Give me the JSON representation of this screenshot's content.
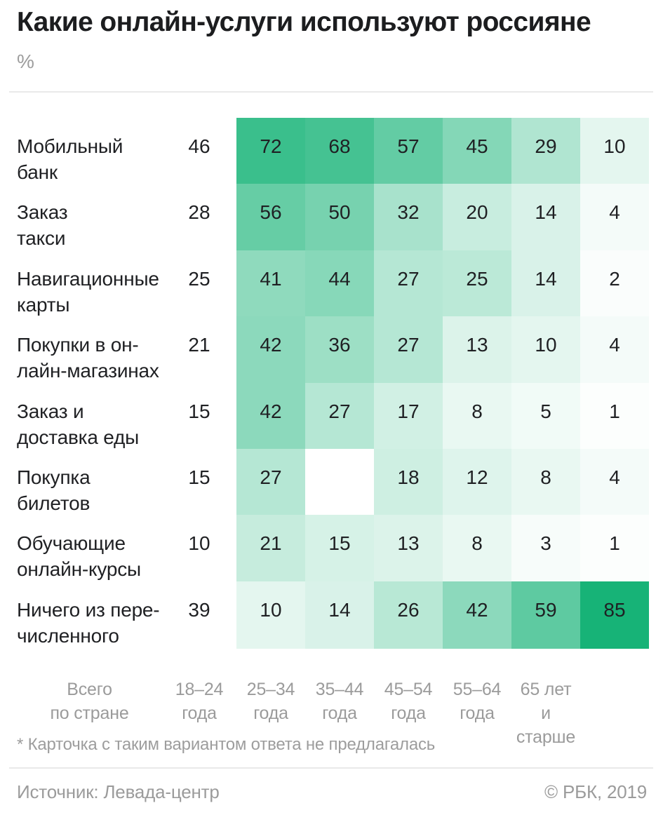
{
  "title": "Какие онлайн-услуги используют россияне",
  "unit_label": "%",
  "footnote": "* Карточка с таким вариантом ответа не предлагалась",
  "source": "Источник: Левада-центр",
  "copyright": "© РБК, 2019",
  "colors": {
    "accent_green": "#17b377",
    "cell_min": "#ffffff",
    "text_dark": "#1f2023",
    "muted_gray": "#9b9b9b",
    "divider": "#e9e9e9"
  },
  "chart_data": {
    "type": "heatmap",
    "title": "Какие онлайн-услуги используют россияне",
    "unit": "%",
    "columns": [
      "Всего по стране",
      "18–24 года",
      "25–34 года",
      "35–44 года",
      "45–54 года",
      "55–64 года",
      "65 лет и старше"
    ],
    "column_lines": [
      [
        "Всего",
        "по стране"
      ],
      [
        "18–24",
        "года"
      ],
      [
        "25–34",
        "года"
      ],
      [
        "35–44",
        "года"
      ],
      [
        "45–54",
        "года"
      ],
      [
        "55–64",
        "года"
      ],
      [
        "65 лет",
        "и старше"
      ]
    ],
    "rows": [
      {
        "label": "Мобильный банк",
        "label_lines": [
          "Мобильный",
          "банк"
        ],
        "total": 46,
        "values": [
          72,
          68,
          57,
          45,
          29,
          10
        ]
      },
      {
        "label": "Заказ такси",
        "label_lines": [
          "Заказ",
          "такси"
        ],
        "total": 28,
        "values": [
          56,
          50,
          32,
          20,
          14,
          4
        ]
      },
      {
        "label": "Навигационные карты",
        "label_lines": [
          "Навигационные",
          "карты"
        ],
        "total": 25,
        "values": [
          41,
          44,
          27,
          25,
          14,
          2
        ]
      },
      {
        "label": "Покупки в онлайн-магазинах",
        "label_lines": [
          "Покупки в он-",
          "лайн-магазинах"
        ],
        "total": 21,
        "values": [
          42,
          36,
          27,
          13,
          10,
          4
        ]
      },
      {
        "label": "Заказ и доставка еды",
        "label_lines": [
          "Заказ и",
          "доставка еды"
        ],
        "total": 15,
        "values": [
          42,
          27,
          17,
          8,
          5,
          1
        ]
      },
      {
        "label": "Покупка билетов",
        "label_lines": [
          "Покупка",
          "билетов"
        ],
        "total": 15,
        "values": [
          27,
          null,
          18,
          12,
          8,
          4
        ]
      },
      {
        "label": "Обучающие онлайн-курсы",
        "label_lines": [
          "Обучающие",
          "онлайн-курсы"
        ],
        "total": 10,
        "values": [
          21,
          15,
          13,
          8,
          3,
          1
        ]
      },
      {
        "label": "Ничего из перечисленного",
        "label_lines": [
          "Ничего из пере-",
          "численного"
        ],
        "total": 39,
        "values": [
          10,
          14,
          26,
          42,
          59,
          85
        ]
      }
    ],
    "color_scale": {
      "min_color": "#ffffff",
      "max_color": "#17b377",
      "domain": [
        0,
        85
      ]
    },
    "missing_value_note": "* Карточка с таким вариантом ответа не предлагалась",
    "legend_position": "none",
    "grid": false
  }
}
